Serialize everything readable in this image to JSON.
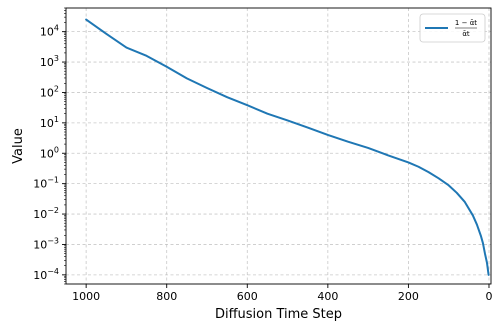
{
  "chart_data": {
    "type": "line",
    "title": "",
    "xlabel": "Diffusion Time Step",
    "ylabel": "Value",
    "x_scale": "linear",
    "y_scale": "log",
    "x_reversed": true,
    "xlim": [
      1050,
      -5
    ],
    "ylim": [
      5e-05,
      60000
    ],
    "xticks": [
      1000,
      800,
      600,
      400,
      200,
      0
    ],
    "yticks": [
      {
        "value": 0.0001,
        "mantissa": "10",
        "exp": "−4"
      },
      {
        "value": 0.001,
        "mantissa": "10",
        "exp": "−3"
      },
      {
        "value": 0.01,
        "mantissa": "10",
        "exp": "−2"
      },
      {
        "value": 0.1,
        "mantissa": "10",
        "exp": "−1"
      },
      {
        "value": 1,
        "mantissa": "10",
        "exp": "0"
      },
      {
        "value": 10,
        "mantissa": "10",
        "exp": "1"
      },
      {
        "value": 100,
        "mantissa": "10",
        "exp": "2"
      },
      {
        "value": 1000,
        "mantissa": "10",
        "exp": "3"
      },
      {
        "value": 10000,
        "mantissa": "10",
        "exp": "4"
      }
    ],
    "grid": true,
    "grid_style": "dashed",
    "legend_position": "top-right",
    "series": [
      {
        "name": "(1 − ᾱt) / ᾱt",
        "legend_numerator": "1 − ᾱt",
        "legend_denominator": "ᾱt",
        "color": "#1f77b4",
        "x": [
          1000,
          950,
          900,
          850,
          800,
          750,
          700,
          650,
          600,
          550,
          500,
          450,
          400,
          350,
          300,
          250,
          200,
          175,
          150,
          125,
          100,
          80,
          60,
          40,
          30,
          20,
          15,
          10,
          5,
          1
        ],
        "y": [
          25000,
          8500,
          3000,
          1600,
          700,
          290,
          140,
          70,
          38,
          20,
          12,
          7,
          4,
          2.4,
          1.5,
          0.85,
          0.5,
          0.36,
          0.24,
          0.15,
          0.088,
          0.05,
          0.025,
          0.009,
          0.0045,
          0.0019,
          0.0011,
          0.0005,
          0.00025,
          0.0001
        ]
      }
    ]
  }
}
